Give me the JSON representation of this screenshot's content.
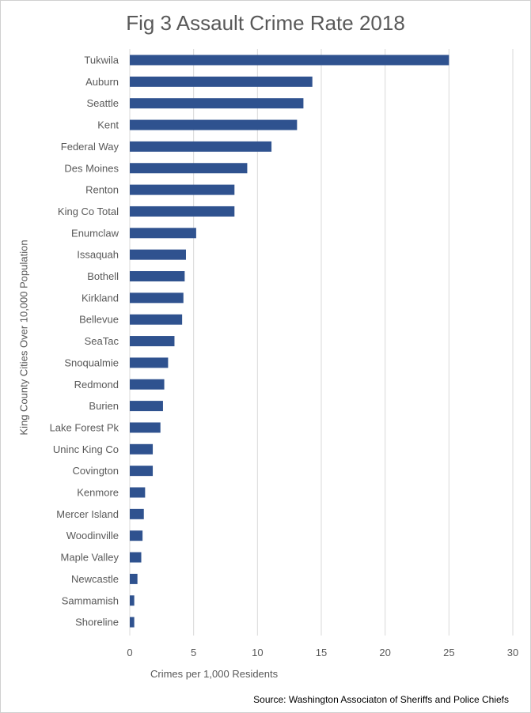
{
  "chart_data": {
    "type": "bar",
    "orientation": "horizontal",
    "title": "Fig 3 Assault Crime Rate 2018",
    "xlabel": "Crimes per 1,000 Residents",
    "ylabel": "King County Cities Over 10,000 Population",
    "source": "Source: Washington Associaton of Sheriffs and Police Chiefs",
    "categories": [
      "Tukwila",
      "Auburn",
      "Seattle",
      "Kent",
      "Federal Way",
      "Des Moines",
      "Renton",
      "King Co Total",
      "Enumclaw",
      "Issaquah",
      "Bothell",
      "Kirkland",
      "Bellevue",
      "SeaTac",
      "Snoqualmie",
      "Redmond",
      "Burien",
      "Lake Forest Pk",
      "Uninc King Co",
      "Covington",
      "Kenmore",
      "Mercer Island",
      "Woodinville",
      "Maple Valley",
      "Newcastle",
      "Sammamish",
      "Shoreline"
    ],
    "values": [
      25.0,
      14.3,
      13.6,
      13.1,
      11.1,
      9.2,
      8.2,
      8.2,
      5.2,
      4.4,
      4.3,
      4.2,
      4.1,
      3.5,
      3.0,
      2.7,
      2.6,
      2.4,
      1.8,
      1.8,
      1.2,
      1.1,
      1.0,
      0.9,
      0.6,
      0.35,
      0.35
    ],
    "xlim": [
      0,
      30
    ],
    "xticks": [
      0,
      5,
      10,
      15,
      20,
      25,
      30
    ],
    "grid": true,
    "colors": {
      "bar": "#2f528f",
      "grid": "#d9d9d9",
      "text": "#595959"
    }
  }
}
